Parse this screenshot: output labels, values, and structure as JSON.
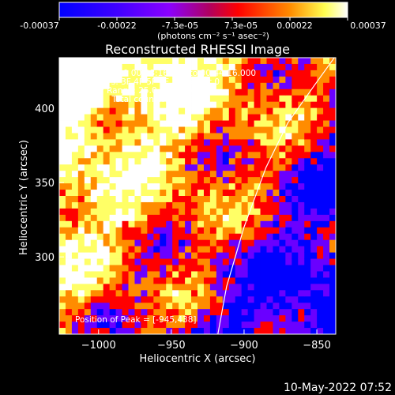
{
  "colorbar": {
    "tick_labels": [
      "-0.00037",
      "-0.00022",
      "-7.3e-05",
      "7.3e-05",
      "0.00022",
      "0.00037"
    ],
    "unit_label": "(photons cm⁻² s⁻¹ asec⁻²)"
  },
  "chart_data": {
    "type": "heatmap",
    "title": "Reconstructed RHESSI Image",
    "xlabel": "Heliocentric X (arcsec)",
    "ylabel": "Heliocentric Y (arcsec)",
    "xlim": [
      -1027,
      -837
    ],
    "ylim": [
      248,
      434
    ],
    "xticks": [
      -1000,
      -950,
      -900,
      -850
    ],
    "xtick_labels": [
      "−1000",
      "−950",
      "−900",
      "−850"
    ],
    "yticks": [
      300,
      350,
      400
    ],
    "ytick_labels": [
      "300",
      "350",
      "400"
    ],
    "value_range": [
      -0.00037,
      0.00037
    ],
    "colormap": [
      "#0000ff",
      "#6a00ff",
      "#ff0000",
      "#ff8c00",
      "#ffff66",
      "#ffffff"
    ],
    "annotations": [
      "21-Sep-2010 00:38:16.000 to 00:44:16.000",
      "Detectors: 3F 4F 5F 6F 7F 8F, Att 0",
      "Energy Range: 25.0 - 50.0 keV",
      "Clean     Total counts: 9.82e+03"
    ],
    "peak_label": "Position of Peak = [-945,438]",
    "limb_curve": {
      "x": [
        -918,
        -912,
        -900,
        -885,
        -870,
        -852,
        -838
      ],
      "y": [
        248,
        280,
        320,
        360,
        390,
        415,
        434
      ]
    }
  },
  "footer": {
    "timestamp": "10-May-2022 07:52"
  }
}
